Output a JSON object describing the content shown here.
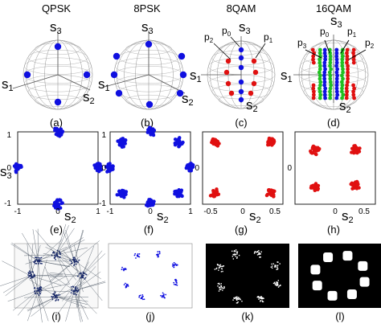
{
  "figure": {
    "column_titles": [
      "QPSK",
      "8PSK",
      "8QAM",
      "16QAM"
    ],
    "sphere_axes": {
      "s1": {
        "letter": "s",
        "index": "1"
      },
      "s2": {
        "letter": "s",
        "index": "2"
      },
      "s3": {
        "letter": "s",
        "index": "3"
      }
    },
    "polarization_labels": [
      "p0",
      "p1",
      "p2",
      "p3"
    ],
    "y_axis_label": {
      "letter": "s",
      "index": "3"
    },
    "x_axis_label": {
      "letter": "s",
      "index": "2"
    },
    "panel_labels": [
      "(a)",
      "(b)",
      "(c)",
      "(d)",
      "(e)",
      "(f)",
      "(g)",
      "(h)",
      "(i)",
      "(j)",
      "(k)",
      "(l)"
    ],
    "ticks": {
      "unit_axes": {
        "x": [
          "-1",
          "0",
          "1"
        ],
        "y": [
          "1",
          "0",
          "-1"
        ]
      },
      "g_axes": {
        "x": [
          "-0.5",
          "0",
          "0.5"
        ],
        "y": [
          "0"
        ]
      },
      "h_axes": {
        "x": [
          "0",
          "0.5"
        ],
        "y": [
          "0"
        ]
      }
    }
  },
  "colors": {
    "blue": "#1010e0",
    "red": "#e01010",
    "green": "#20c020",
    "sphere_grid": "#a0a0a0",
    "black": "#000000"
  },
  "chart_data": [
    {
      "panel": "(e)",
      "type": "scatter",
      "title": "",
      "series": [
        {
          "color": "#1010e0",
          "x": [
            0,
            1,
            0,
            -1
          ],
          "y": [
            1,
            0,
            -1,
            0
          ]
        }
      ],
      "xlim": [
        -1,
        1
      ],
      "ylim": [
        -1,
        1
      ],
      "xlabel": "s2",
      "ylabel": "s3"
    },
    {
      "panel": "(f)",
      "type": "scatter",
      "title": "",
      "series": [
        {
          "color": "#1010e0",
          "x": [
            0,
            0.71,
            1,
            0.71,
            0,
            -0.71,
            -1,
            -0.71
          ],
          "y": [
            1,
            0.71,
            0,
            -0.71,
            -1,
            -0.71,
            0,
            0.71
          ]
        }
      ],
      "xlim": [
        -1,
        1
      ],
      "ylim": [
        -1,
        1
      ],
      "xlabel": "s2",
      "ylabel": ""
    },
    {
      "panel": "(g)",
      "type": "scatter",
      "title": "",
      "series": [
        {
          "color": "#e01010",
          "x": [
            -0.35,
            0.35,
            -0.35,
            0.35
          ],
          "y": [
            0.35,
            0.35,
            -0.35,
            -0.35
          ]
        }
      ],
      "xlim": [
        -0.5,
        0.5
      ],
      "ylim": [
        -0.5,
        0.5
      ],
      "xlabel": "s2",
      "ylabel": ""
    },
    {
      "panel": "(h)",
      "type": "scatter",
      "title": "",
      "series": [
        {
          "color": "#e01010",
          "x": [
            -0.25,
            0.25,
            -0.25,
            0.25
          ],
          "y": [
            0.25,
            0.25,
            -0.25,
            -0.25
          ]
        }
      ],
      "xlim": [
        -0.5,
        0.5
      ],
      "ylim": [
        -0.5,
        0.5
      ],
      "xlabel": "s2",
      "ylabel": ""
    }
  ]
}
